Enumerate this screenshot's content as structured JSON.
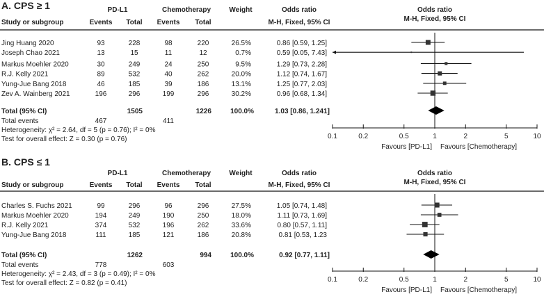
{
  "chart_data": [
    {
      "type": "forest",
      "title": "A. CPS ≥ 1",
      "headers": {
        "group1": "PD-L1",
        "group2": "Chemotherapy",
        "weight": "Weight",
        "or": "Odds ratio",
        "study": "Study or subgroup",
        "events": "Events",
        "total": "Total",
        "method": "M-H, Fixed, 95% CI",
        "plot_title": "Odds ratio",
        "plot_method": "M-H, Fixed, 95% CI"
      },
      "studies": [
        {
          "name": "Jing Huang 2020",
          "e1": "93",
          "n1": "228",
          "e2": "98",
          "n2": "220",
          "weight": "26.5%",
          "or_text": "0.86 [0.59, 1.25]",
          "or": 0.86,
          "lo": 0.59,
          "hi": 1.25,
          "w": 26.5
        },
        {
          "name": "Joseph Chao 2021",
          "e1": "13",
          "n1": "15",
          "e2": "11",
          "n2": "12",
          "weight": "0.7%",
          "or_text": "0.59 [0.05, 7.43]",
          "or": 0.59,
          "lo": 0.05,
          "hi": 7.43,
          "w": 0.7
        },
        {
          "name": "Markus Moehler 2020",
          "e1": "30",
          "n1": "249",
          "e2": "24",
          "n2": "250",
          "weight": "9.5%",
          "or_text": "1.29 [0.73, 2.28]",
          "or": 1.29,
          "lo": 0.73,
          "hi": 2.28,
          "w": 9.5
        },
        {
          "name": "R.J. Kelly 2021",
          "e1": "89",
          "n1": "532",
          "e2": "40",
          "n2": "262",
          "weight": "20.0%",
          "or_text": "1.12 [0.74, 1.67]",
          "or": 1.12,
          "lo": 0.74,
          "hi": 1.67,
          "w": 20.0
        },
        {
          "name": "Yung-Jue Bang 2018",
          "e1": "46",
          "n1": "185",
          "e2": "39",
          "n2": "186",
          "weight": "13.1%",
          "or_text": "1.25 [0.77, 2.03]",
          "or": 1.25,
          "lo": 0.77,
          "hi": 2.03,
          "w": 13.1
        },
        {
          "name": "Zev A. Wainberg 2021",
          "e1": "196",
          "n1": "296",
          "e2": "199",
          "n2": "296",
          "weight": "30.2%",
          "or_text": "0.96 [0.68, 1.34]",
          "or": 0.96,
          "lo": 0.68,
          "hi": 1.34,
          "w": 30.2
        }
      ],
      "total": {
        "label": "Total (95% CI)",
        "n1": "1505",
        "n2": "1226",
        "weight": "100.0%",
        "or_text": "1.03 [0.86, 1.241]",
        "or": 1.03,
        "lo": 0.86,
        "hi": 1.24
      },
      "total_events": {
        "label": "Total events",
        "e1": "467",
        "e2": "411"
      },
      "heterogeneity": "Heterogeneity: χ² = 2.64, df = 5 (p = 0.76); I² = 0%",
      "overall_effect": "Test for overall effect: Z = 0.30 (p = 0.76)",
      "x_scale": "log",
      "xlim": [
        0.1,
        10
      ],
      "xticks": [
        "0.1",
        "0.2",
        "0.5",
        "1",
        "2",
        "5",
        "10"
      ],
      "favours_left": "Favours [PD-L1]",
      "favours_right": "Favours [Chemotherapy]"
    },
    {
      "type": "forest",
      "title": "B. CPS ≤ 1",
      "headers": {
        "group1": "PD-L1",
        "group2": "Chemotherapy",
        "weight": "Weight",
        "or": "Odds ratio",
        "study": "Study or subgroup",
        "events": "Events",
        "total": "Total",
        "method": "M-H, Fixed, 95% CI",
        "plot_title": "Odds ratio",
        "plot_method": "M-H, Fixed, 95% CI"
      },
      "studies": [
        {
          "name": "Charles S. Fuchs 2021",
          "e1": "99",
          "n1": "296",
          "e2": "96",
          "n2": "296",
          "weight": "27.5%",
          "or_text": "1.05 [0.74, 1.48]",
          "or": 1.05,
          "lo": 0.74,
          "hi": 1.48,
          "w": 27.5
        },
        {
          "name": "Markus Moehler 2020",
          "e1": "194",
          "n1": "249",
          "e2": "190",
          "n2": "250",
          "weight": "18.0%",
          "or_text": "1.11 [0.73, 1.69]",
          "or": 1.11,
          "lo": 0.73,
          "hi": 1.69,
          "w": 18.0
        },
        {
          "name": "R.J. Kelly 2021",
          "e1": "374",
          "n1": "532",
          "e2": "196",
          "n2": "262",
          "weight": "33.6%",
          "or_text": "0.80 [0.57, 1.11]",
          "or": 0.8,
          "lo": 0.57,
          "hi": 1.11,
          "w": 33.6
        },
        {
          "name": "Yung-Jue Bang 2018",
          "e1": "111",
          "n1": "185",
          "e2": "121",
          "n2": "186",
          "weight": "20.8%",
          "or_text": "0.81 [0.53, 1.23",
          "or": 0.81,
          "lo": 0.53,
          "hi": 1.23,
          "w": 20.8
        }
      ],
      "total": {
        "label": "Total (95% CI)",
        "n1": "1262",
        "n2": "994",
        "weight": "100.0%",
        "or_text": "0.92 [0.77, 1.11]",
        "or": 0.92,
        "lo": 0.77,
        "hi": 1.11
      },
      "total_events": {
        "label": "Total events",
        "e1": "778",
        "e2": "603"
      },
      "heterogeneity": "Heterogeneity: χ² = 2.43, df = 3 (p = 0.49); I² = 0%",
      "overall_effect": "Test for overall effect: Z = 0.82 (p = 0.41)",
      "x_scale": "log",
      "xlim": [
        0.1,
        10
      ],
      "xticks": [
        "0.1",
        "0.2",
        "0.5",
        "1",
        "2",
        "5",
        "10"
      ],
      "favours_left": "Favours [PD-L1]",
      "favours_right": "Favours [Chemotherapy]"
    }
  ]
}
